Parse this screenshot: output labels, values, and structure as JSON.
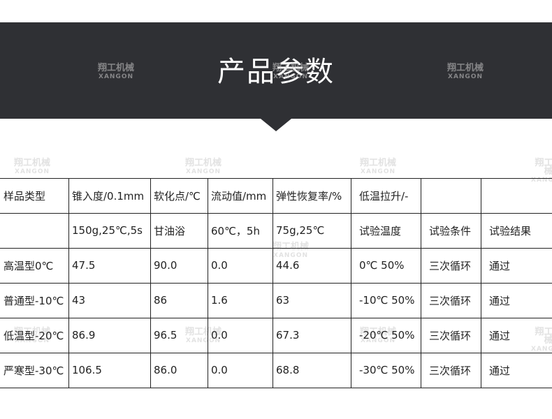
{
  "header": {
    "title": "产品参数"
  },
  "watermark": {
    "cn": "翔工机械",
    "en": "XANGON"
  },
  "table": {
    "rows": [
      [
        "样品类型",
        "锥入度/0.1mm",
        "软化点/℃",
        "流动值/mm",
        "弹性恢复率/%",
        "低温拉升/-",
        null,
        null
      ],
      [
        null,
        "150g,25℃,5s",
        "甘油浴",
        "60℃，5h",
        "75g,25℃",
        "试验温度",
        "试验条件",
        "试验结果"
      ],
      [
        "高温型0℃",
        "47.5",
        "90.0",
        "0.0",
        "44.6",
        "0℃ 50%",
        "三次循环",
        "通过"
      ],
      [
        "普通型-10℃",
        "43",
        "86",
        "1.6",
        "63",
        "-10℃ 50%",
        "三次循环",
        "通过"
      ],
      [
        "低温型-20℃",
        "86.9",
        "96.5",
        "0.0",
        "67.3",
        "-20℃ 50%",
        "三次循环",
        "通过"
      ],
      [
        "严寒型-30℃",
        "106.5",
        "86.0",
        "0.0",
        "68.8",
        "-30℃ 50%",
        "三次循环",
        "通过"
      ]
    ]
  }
}
